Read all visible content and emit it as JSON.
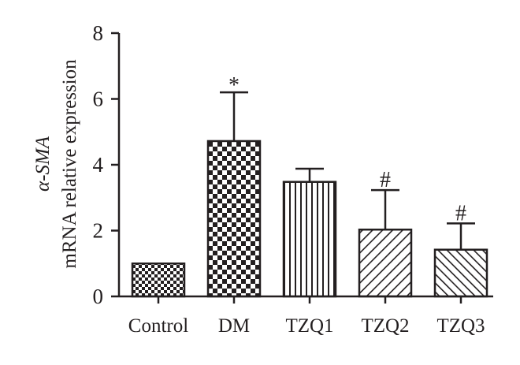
{
  "chart_data": {
    "type": "bar",
    "title": "",
    "xlabel": "",
    "ylabel_line1": "α-SMA",
    "ylabel_line2": "mRNA relative expression",
    "ylim": [
      0,
      8
    ],
    "yticks": [
      0,
      2,
      4,
      6,
      8
    ],
    "ytick_labels": [
      "0",
      "2",
      "4",
      "6",
      "8"
    ],
    "categories": [
      "Control",
      "DM",
      "TZQ1",
      "TZQ2",
      "TZQ3"
    ],
    "values": [
      1.0,
      4.72,
      3.48,
      2.03,
      1.42
    ],
    "errors": [
      0,
      1.48,
      0.4,
      1.2,
      0.8
    ],
    "annotations": [
      "",
      "*",
      "",
      "#",
      "#"
    ],
    "patterns": [
      "fine-checker",
      "checker",
      "vertical-lines",
      "diagonal-lines",
      "back-diagonal-lines"
    ],
    "colors": {
      "bar_stroke": "#231f20",
      "pattern_ink": "#231f20",
      "background": "#ffffff"
    },
    "grid": false,
    "legend": "none"
  }
}
